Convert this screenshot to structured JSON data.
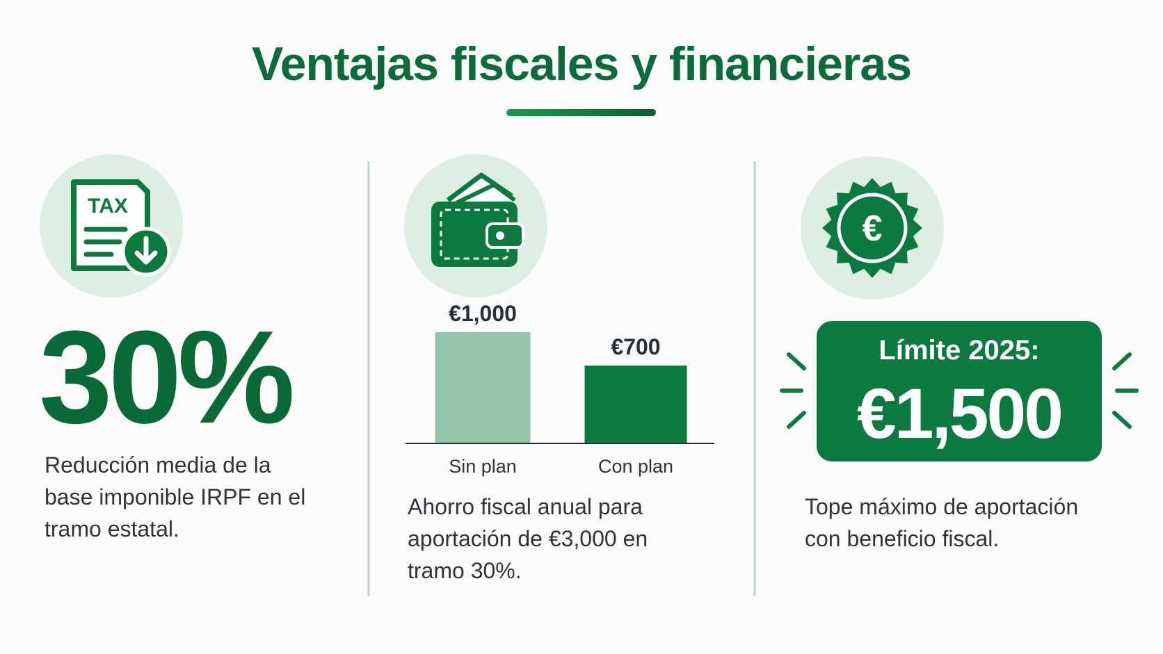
{
  "title": "Ventajas fiscales y financieras",
  "panels": [
    {
      "icon_label": "TAX",
      "headline": "30%",
      "description": [
        "Reducción media de la",
        "base imponible IRPF en el",
        "tramo estatal."
      ]
    },
    {
      "description": [
        "Ahorro fiscal anual para",
        "aportación de €3,000 en",
        "tramo 30%."
      ]
    },
    {
      "icon_label": "€",
      "box_label": "Límite 2025:",
      "box_value": "€1,500",
      "description": [
        "Tope máximo de aportación",
        "con beneficio fiscal."
      ]
    }
  ],
  "chart_data": {
    "type": "bar",
    "categories": [
      "Sin plan",
      "Con plan"
    ],
    "values": [
      1000,
      700
    ],
    "value_labels": [
      "€1,000",
      "€700"
    ],
    "colors": [
      "#96c4aa",
      "#0c7a3e"
    ]
  }
}
